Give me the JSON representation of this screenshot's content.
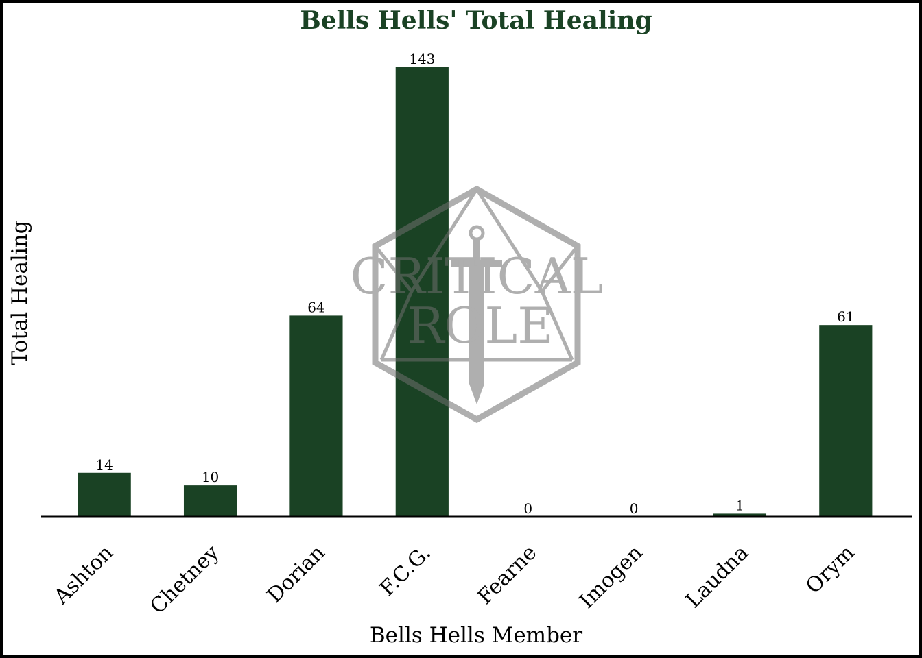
{
  "chart_data": {
    "type": "bar",
    "title": "Bells Hells' Total Healing",
    "xlabel": "Bells Hells Member",
    "ylabel": "Total Healing",
    "categories": [
      "Ashton",
      "Chetney",
      "Dorian",
      "F.C.G.",
      "Fearne",
      "Imogen",
      "Laudna",
      "Orym"
    ],
    "values": [
      14,
      10,
      64,
      143,
      0,
      0,
      1,
      61
    ],
    "ylim": [
      0,
      143
    ],
    "grid": false,
    "data_labels": true
  },
  "watermark": {
    "text_line1": "CRITICAL",
    "text_line2": "ROLE",
    "icon": "d20-sword-logo"
  },
  "colors": {
    "bar": "#1a4224",
    "title": "#1a4224",
    "watermark": "#6e6e6e",
    "baseline": "#000000"
  }
}
